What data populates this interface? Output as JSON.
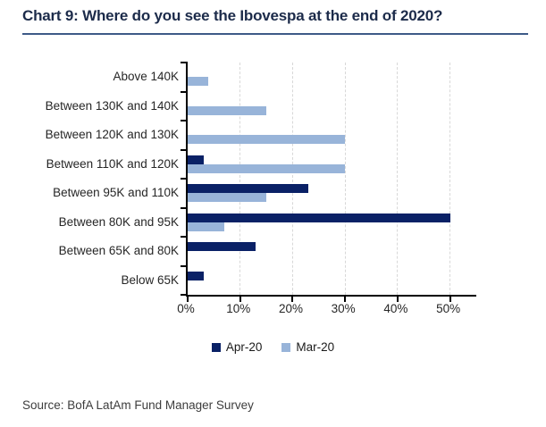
{
  "header": {
    "title": "Chart 9: Where do you see the Ibovespa at the end of 2020?"
  },
  "footer": {
    "source": "Source: BofA LatAm Fund Manager Survey"
  },
  "chart_data": {
    "type": "bar",
    "orientation": "horizontal",
    "title": "Chart 9: Where do you see the Ibovespa at the end of 2020?",
    "categories": [
      "Above 140K",
      "Between 130K and 140K",
      "Between 120K and 130K",
      "Between 110K and 120K",
      "Between 95K and 110K",
      "Between 80K and 95K",
      "Between 65K and 80K",
      "Below 65K"
    ],
    "series": [
      {
        "name": "Apr-20",
        "color": "#0a2166",
        "values": [
          0,
          0,
          0,
          3,
          23,
          50,
          13,
          3
        ]
      },
      {
        "name": "Mar-20",
        "color": "#98b4d9",
        "values": [
          4,
          15,
          30,
          30,
          15,
          7,
          0,
          0
        ]
      }
    ],
    "x_tick_labels": [
      "0%",
      "10%",
      "20%",
      "30%",
      "40%",
      "50%"
    ],
    "x_tick_values": [
      0,
      10,
      20,
      30,
      40,
      50
    ],
    "xlim": [
      0,
      55
    ],
    "unit": "%",
    "grid": "vertical-dashed",
    "legend_position": "bottom",
    "colors": {
      "axis": "#000000",
      "gridline": "#d8d8d8",
      "title_text": "#1c2b4a",
      "title_rule": "#3d5a87"
    }
  }
}
